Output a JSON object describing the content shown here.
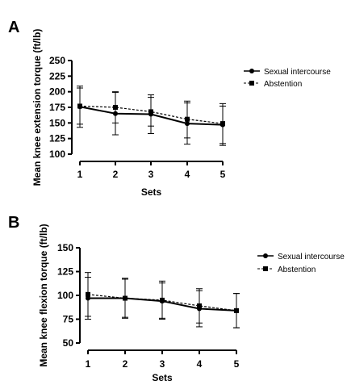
{
  "chart_data": [
    {
      "type": "line",
      "panel_label": "A",
      "x": [
        1,
        2,
        3,
        4,
        5
      ],
      "xlabel": "Sets",
      "ylabel": "Mean knee extension torque (ft/lb)",
      "xlim": [
        1,
        5
      ],
      "ylim": [
        100,
        250
      ],
      "yticks": [
        100,
        125,
        150,
        175,
        200,
        225,
        250
      ],
      "grid": false,
      "legend_position": "right",
      "series": [
        {
          "name": "Sexual intercourse",
          "marker": "circle",
          "line": "solid",
          "values": [
            176,
            165,
            164,
            149,
            147
          ],
          "err_upper": [
            209,
            199,
            195,
            182,
            177
          ],
          "err_lower": [
            143,
            131,
            133,
            116,
            117
          ]
        },
        {
          "name": "Abstention",
          "marker": "square",
          "line": "dashed",
          "values": [
            177,
            175,
            168,
            156,
            149
          ],
          "err_upper": [
            206,
            200,
            191,
            185,
            181
          ],
          "err_lower": [
            148,
            150,
            145,
            126,
            114
          ]
        }
      ]
    },
    {
      "type": "line",
      "panel_label": "B",
      "x": [
        1,
        2,
        3,
        4,
        5
      ],
      "xlabel": "Sets",
      "ylabel": "Mean knee flexion torque (ft/lb)",
      "xlim": [
        1,
        5
      ],
      "ylim": [
        50,
        150
      ],
      "yticks": [
        50,
        75,
        100,
        125,
        150
      ],
      "grid": false,
      "legend_position": "right",
      "series": [
        {
          "name": "Sexual intercourse",
          "marker": "circle",
          "line": "solid",
          "values": [
            97,
            97,
            94,
            86,
            84
          ],
          "err_upper": [
            119,
            117,
            113,
            105,
            102
          ],
          "err_lower": [
            75,
            77,
            75,
            67,
            66
          ]
        },
        {
          "name": "Abstention",
          "marker": "square",
          "line": "dashed",
          "values": [
            101,
            97,
            95,
            89,
            84
          ],
          "err_upper": [
            124,
            118,
            115,
            107,
            102
          ],
          "err_lower": [
            78,
            76,
            76,
            71,
            66
          ]
        }
      ]
    }
  ]
}
